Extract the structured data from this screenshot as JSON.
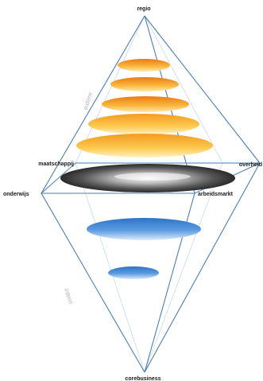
{
  "labels": {
    "top": "regio",
    "bottom": "corebusiness",
    "left": "onderwijs",
    "right": "overheid",
    "upper_left": "maatschappij",
    "lower_right": "arbeidsmarkt"
  },
  "side_labels": {
    "upper": "extern",
    "lower": "intern"
  },
  "colors": {
    "frame": "#4a7fb8",
    "frame_light": "#a9c3e0",
    "disc_orange_dark": "#ee7f1c",
    "disc_orange_light": "#ffde8a",
    "disc_gray_dark": "#3a3a3a",
    "disc_gray_light": "#f4f4f4",
    "disc_blue_dark": "#2f78cc",
    "disc_blue_light": "#d6e8f8"
  }
}
